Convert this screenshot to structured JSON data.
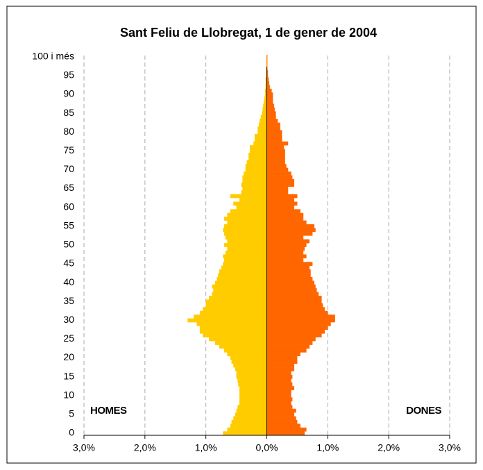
{
  "chart_data": {
    "type": "pyramid",
    "title": "Sant Feliu de Llobregat, 1 de gener de 2004",
    "annotations": [
      "HOMES",
      "DONES"
    ],
    "categories": [
      "0",
      null,
      null,
      null,
      null,
      "5",
      null,
      null,
      null,
      null,
      "10",
      null,
      null,
      null,
      null,
      "15",
      null,
      null,
      null,
      null,
      "20",
      null,
      null,
      null,
      null,
      "25",
      null,
      null,
      null,
      null,
      "30",
      null,
      null,
      null,
      null,
      "35",
      null,
      null,
      null,
      null,
      "40",
      null,
      null,
      null,
      null,
      "45",
      null,
      null,
      null,
      null,
      "50",
      null,
      null,
      null,
      null,
      "55",
      null,
      null,
      null,
      null,
      "60",
      null,
      null,
      null,
      null,
      "65",
      null,
      null,
      null,
      null,
      "70",
      null,
      null,
      null,
      null,
      "75",
      null,
      null,
      null,
      null,
      "80",
      null,
      null,
      null,
      null,
      "85",
      null,
      null,
      null,
      null,
      "90",
      null,
      null,
      null,
      null,
      "95",
      null,
      null,
      null,
      null,
      "100 i més"
    ],
    "series": [
      {
        "color": "#ffcc00",
        "values": [
          -0.72,
          -0.65,
          -0.6,
          -0.58,
          -0.55,
          -0.52,
          -0.5,
          -0.48,
          -0.45,
          -0.45,
          -0.45,
          -0.45,
          -0.45,
          -0.47,
          -0.48,
          -0.5,
          -0.5,
          -0.52,
          -0.55,
          -0.58,
          -0.6,
          -0.65,
          -0.7,
          -0.78,
          -0.85,
          -0.95,
          -1.05,
          -1.1,
          -1.1,
          -1.15,
          -1.3,
          -1.2,
          -1.1,
          -1.05,
          -1.0,
          -1.0,
          -0.95,
          -0.9,
          -0.88,
          -0.9,
          -0.85,
          -0.82,
          -0.8,
          -0.78,
          -0.75,
          -0.72,
          -0.7,
          -0.72,
          -0.68,
          -0.65,
          -0.7,
          -0.65,
          -0.68,
          -0.7,
          -0.72,
          -0.7,
          -0.65,
          -0.7,
          -0.65,
          -0.6,
          -0.5,
          -0.55,
          -0.45,
          -0.6,
          -0.42,
          -0.4,
          -0.42,
          -0.4,
          -0.4,
          -0.38,
          -0.35,
          -0.35,
          -0.33,
          -0.3,
          -0.3,
          -0.28,
          -0.28,
          -0.22,
          -0.2,
          -0.2,
          -0.15,
          -0.15,
          -0.13,
          -0.12,
          -0.1,
          -0.08,
          -0.07,
          -0.06,
          -0.05,
          -0.04,
          -0.03,
          -0.03,
          -0.02,
          -0.02,
          -0.02,
          -0.01,
          -0.01,
          -0.01,
          -0.01,
          -0.01,
          -0.01
        ]
      },
      {
        "color": "#ff6600",
        "values": [
          0.62,
          0.65,
          0.55,
          0.5,
          0.48,
          0.45,
          0.48,
          0.42,
          0.4,
          0.42,
          0.4,
          0.4,
          0.45,
          0.42,
          0.4,
          0.42,
          0.4,
          0.45,
          0.45,
          0.5,
          0.5,
          0.55,
          0.65,
          0.7,
          0.75,
          0.8,
          0.9,
          0.95,
          1.0,
          1.05,
          1.12,
          1.12,
          1.0,
          0.95,
          0.92,
          0.9,
          0.9,
          0.85,
          0.82,
          0.8,
          0.78,
          0.75,
          0.72,
          0.72,
          0.7,
          0.75,
          0.6,
          0.65,
          0.6,
          0.62,
          0.65,
          0.7,
          0.6,
          0.75,
          0.8,
          0.78,
          0.65,
          0.6,
          0.6,
          0.55,
          0.45,
          0.5,
          0.45,
          0.5,
          0.35,
          0.35,
          0.45,
          0.45,
          0.42,
          0.4,
          0.35,
          0.32,
          0.3,
          0.3,
          0.3,
          0.3,
          0.28,
          0.35,
          0.25,
          0.25,
          0.25,
          0.22,
          0.22,
          0.18,
          0.15,
          0.15,
          0.13,
          0.12,
          0.1,
          0.1,
          0.1,
          0.08,
          0.05,
          0.04,
          0.03,
          0.02,
          0.02,
          0.01,
          0.01,
          0.01,
          0.01
        ]
      }
    ],
    "xlim": [
      -3,
      3
    ],
    "xticks": [
      {
        "value": -3,
        "label": "3,0%"
      },
      {
        "value": -2,
        "label": "2,0%"
      },
      {
        "value": -1,
        "label": "1,0%"
      },
      {
        "value": 0,
        "label": "0,0%"
      },
      {
        "value": 1,
        "label": "1,0%"
      },
      {
        "value": 2,
        "label": "2,0%"
      },
      {
        "value": 3,
        "label": "3,0%"
      }
    ],
    "grid": true
  }
}
